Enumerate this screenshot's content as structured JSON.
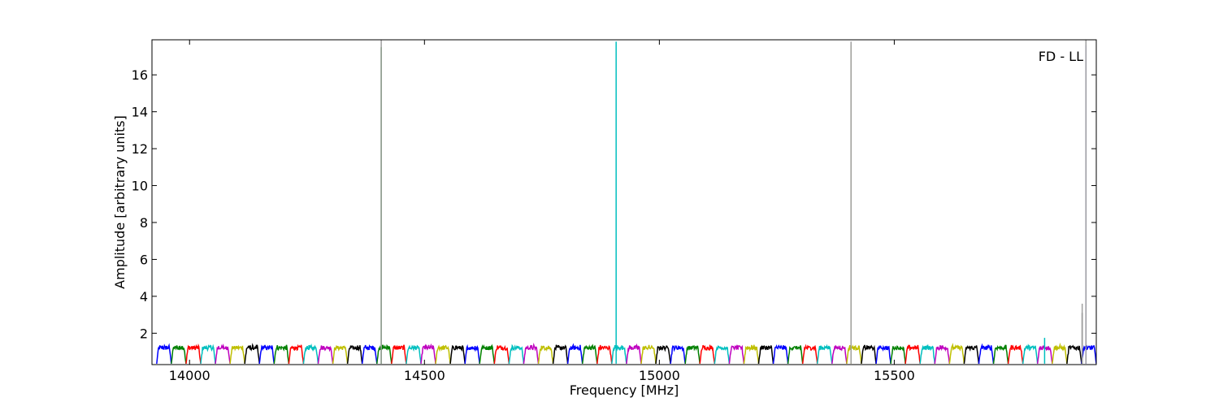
{
  "chart_data": {
    "type": "line",
    "title": "",
    "xlabel": "Frequency [MHz]",
    "ylabel": "Amplitude [arbitrary units]",
    "annotation": "FD - LL",
    "xlim": [
      13920,
      15930
    ],
    "ylim": [
      0.3,
      17.9
    ],
    "x_ticks": [
      14000,
      14500,
      15000,
      15500
    ],
    "y_ticks": [
      2,
      4,
      6,
      8,
      10,
      12,
      14,
      16
    ],
    "grid": false,
    "legend": "none",
    "band_start": 13930,
    "band_width": 31.25,
    "band_count": 64,
    "channel_count": 32,
    "color_cycle": [
      "#0000ff",
      "#008000",
      "#ff0000",
      "#00bfbf",
      "#bf00bf",
      "#bfbf00",
      "#000000"
    ],
    "baseline": 0.35,
    "plateau": 1.2,
    "spikes": [
      {
        "x": 14408,
        "y": 17.5,
        "color": "#008000"
      },
      {
        "x": 14408,
        "y": 17.9,
        "color": "#a0a0a0"
      },
      {
        "x": 14908,
        "y": 17.8,
        "color": "#00bfbf"
      },
      {
        "x": 15408,
        "y": 17.6,
        "color": "#bfbf00"
      },
      {
        "x": 15408,
        "y": 17.8,
        "color": "#a0a0a0"
      },
      {
        "x": 15900,
        "y": 3.1,
        "color": "#000000"
      },
      {
        "x": 15900,
        "y": 3.6,
        "color": "#a0a0a0"
      },
      {
        "x": 15908,
        "y": 17.6,
        "color": "#0000ff"
      },
      {
        "x": 15908,
        "y": 17.9,
        "color": "#a0a0a0"
      },
      {
        "x": 15820,
        "y": 1.75,
        "color": "#00bfbf"
      }
    ]
  }
}
